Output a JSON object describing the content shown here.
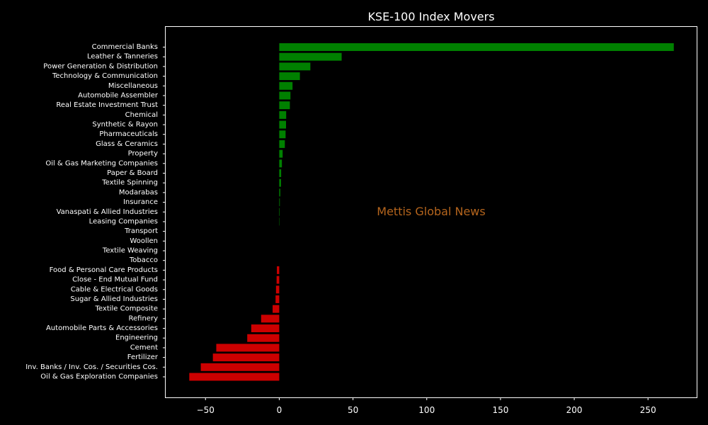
{
  "chart_data": {
    "type": "bar",
    "orientation": "horizontal",
    "title": "KSE-100 Index Movers",
    "watermark": "Mettis Global News",
    "xlabel": "",
    "ylabel": "",
    "xlim": [
      -77,
      283
    ],
    "xticks": [
      -50,
      0,
      50,
      100,
      150,
      200,
      250
    ],
    "xtick_labels": [
      "−50",
      "0",
      "50",
      "100",
      "150",
      "200",
      "250"
    ],
    "grid": false,
    "colors": {
      "positive": "#008000",
      "negative": "#cc0000",
      "background": "#000000",
      "text": "#ffffff",
      "watermark": "#b5651d"
    },
    "categories": [
      "Commercial Banks",
      "Leather & Tanneries",
      "Power Generation & Distribution",
      "Technology & Communication",
      "Miscellaneous",
      "Automobile Assembler",
      "Real Estate Investment Trust",
      "Chemical",
      "Synthetic & Rayon",
      "Pharmaceuticals",
      "Glass & Ceramics",
      "Property",
      "Oil & Gas Marketing Companies",
      "Paper & Board",
      "Textile Spinning",
      "Modarabas",
      "Insurance",
      "Vanaspati & Allied Industries",
      "Leasing Companies",
      "Transport",
      "Woollen",
      "Textile Weaving",
      "Tobacco",
      "Food & Personal Care Products",
      "Close - End Mutual Fund",
      "Cable & Electrical Goods",
      "Sugar & Allied Industries",
      "Textile Composite",
      "Refinery",
      "Automobile Parts & Accessories",
      "Engineering",
      "Cement",
      "Fertilizer",
      "Inv. Banks / Inv. Cos. / Securities Cos.",
      "Oil & Gas Exploration Companies"
    ],
    "values": [
      267.5,
      42.3,
      21.1,
      14.0,
      9.0,
      7.6,
      7.2,
      4.7,
      4.6,
      4.3,
      3.8,
      2.3,
      1.8,
      1.3,
      1.2,
      0.7,
      0.4,
      0.3,
      0.2,
      0.0,
      0.0,
      0.0,
      0.0,
      -1.6,
      -1.8,
      -2.2,
      -2.5,
      -4.5,
      -12.3,
      -19.0,
      -21.7,
      -42.7,
      -45.0,
      -53.2,
      -61.0
    ]
  }
}
